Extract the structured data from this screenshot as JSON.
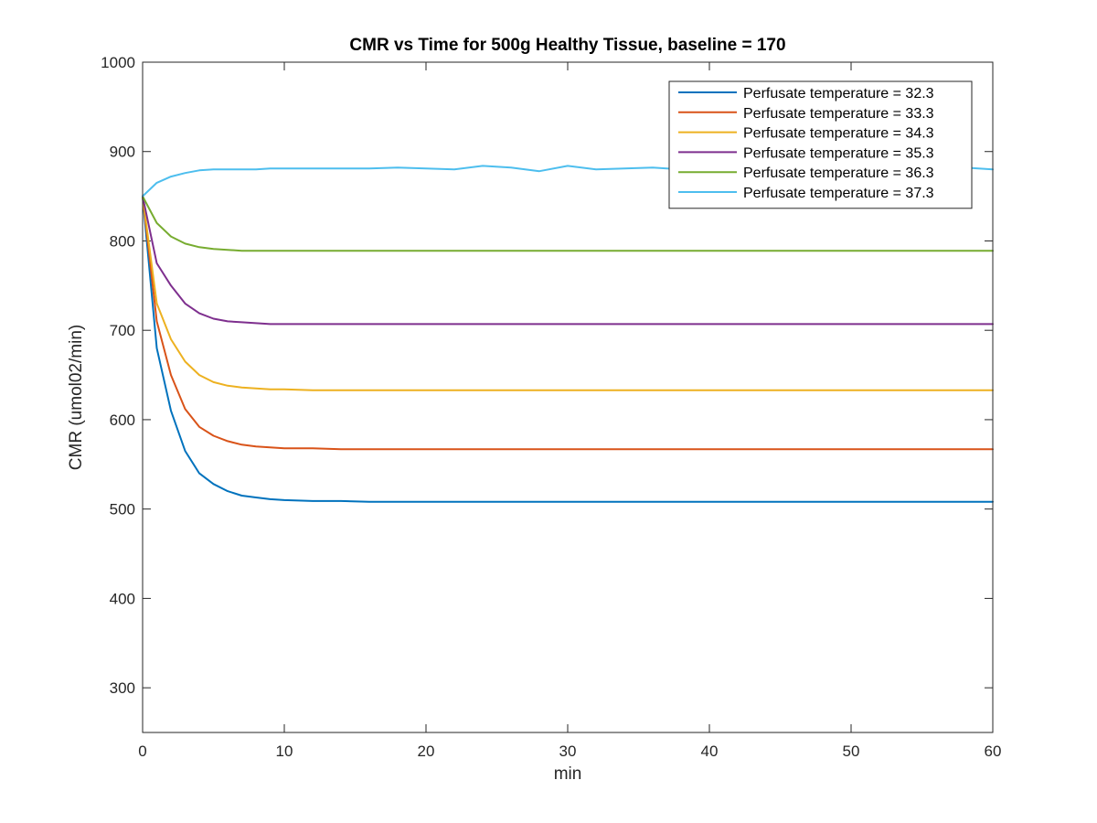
{
  "chart_data": {
    "type": "line",
    "title": "CMR vs Time for 500g Healthy Tissue, baseline = 170",
    "xlabel": "min",
    "ylabel": "CMR (umol02/min)",
    "xlim": [
      0,
      60
    ],
    "ylim": [
      250,
      1000
    ],
    "xticks": [
      0,
      10,
      20,
      30,
      40,
      50,
      60
    ],
    "yticks": [
      300,
      400,
      500,
      600,
      700,
      800,
      900,
      1000
    ],
    "grid": false,
    "legend_position": "top-right",
    "x": [
      0,
      1,
      2,
      3,
      4,
      5,
      6,
      7,
      8,
      9,
      10,
      12,
      14,
      16,
      18,
      20,
      22,
      24,
      26,
      28,
      30,
      32,
      34,
      36,
      38,
      40,
      42,
      44,
      46,
      48,
      50,
      52,
      54,
      56,
      58,
      60
    ],
    "series": [
      {
        "name": "Perfusate temperature = 32.3",
        "color": "#0072BD",
        "values": [
          850,
          680,
          610,
          565,
          540,
          528,
          520,
          515,
          513,
          511,
          510,
          509,
          509,
          508,
          508,
          508,
          508,
          508,
          508,
          508,
          508,
          508,
          508,
          508,
          508,
          508,
          508,
          508,
          508,
          508,
          508,
          508,
          508,
          508,
          508,
          508
        ]
      },
      {
        "name": "Perfusate temperature = 33.3",
        "color": "#D95319",
        "values": [
          850,
          710,
          650,
          612,
          592,
          582,
          576,
          572,
          570,
          569,
          568,
          568,
          567,
          567,
          567,
          567,
          567,
          567,
          567,
          567,
          567,
          567,
          567,
          567,
          567,
          567,
          567,
          567,
          567,
          567,
          567,
          567,
          567,
          567,
          567,
          567
        ]
      },
      {
        "name": "Perfusate temperature = 34.3",
        "color": "#EDB120",
        "values": [
          850,
          730,
          690,
          665,
          650,
          642,
          638,
          636,
          635,
          634,
          634,
          633,
          633,
          633,
          633,
          633,
          633,
          633,
          633,
          633,
          633,
          633,
          633,
          633,
          633,
          633,
          633,
          633,
          633,
          633,
          633,
          633,
          633,
          633,
          633,
          633
        ]
      },
      {
        "name": "Perfusate temperature = 35.3",
        "color": "#7E2F8E",
        "values": [
          850,
          775,
          750,
          730,
          719,
          713,
          710,
          709,
          708,
          707,
          707,
          707,
          707,
          707,
          707,
          707,
          707,
          707,
          707,
          707,
          707,
          707,
          707,
          707,
          707,
          707,
          707,
          707,
          707,
          707,
          707,
          707,
          707,
          707,
          707,
          707
        ]
      },
      {
        "name": "Perfusate temperature = 36.3",
        "color": "#77AC30",
        "values": [
          850,
          820,
          805,
          797,
          793,
          791,
          790,
          789,
          789,
          789,
          789,
          789,
          789,
          789,
          789,
          789,
          789,
          789,
          789,
          789,
          789,
          789,
          789,
          789,
          789,
          789,
          789,
          789,
          789,
          789,
          789,
          789,
          789,
          789,
          789,
          789
        ]
      },
      {
        "name": "Perfusate temperature = 37.3",
        "color": "#4DBEEE",
        "values": [
          850,
          865,
          872,
          876,
          879,
          880,
          880,
          880,
          880,
          881,
          881,
          881,
          881,
          881,
          882,
          881,
          880,
          884,
          882,
          878,
          884,
          880,
          881,
          882,
          880,
          881,
          880,
          882,
          881,
          880,
          881,
          879,
          881,
          880,
          882,
          880
        ]
      }
    ]
  }
}
